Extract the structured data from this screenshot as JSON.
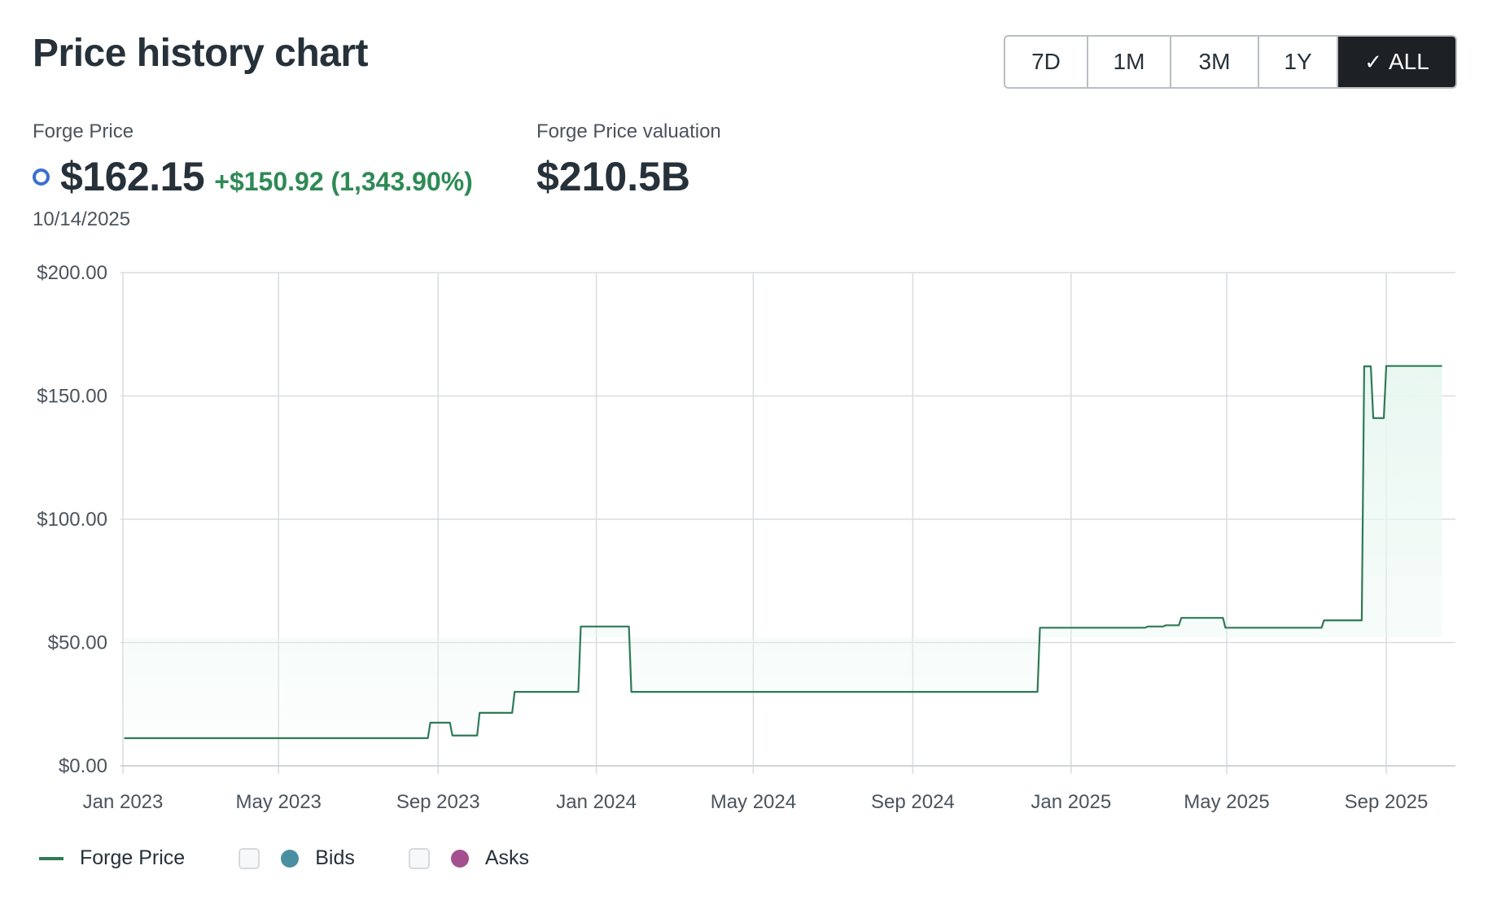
{
  "header": {
    "title": "Price history chart"
  },
  "ranges": [
    {
      "label": "7D",
      "active": false
    },
    {
      "label": "1M",
      "active": false
    },
    {
      "label": "3M",
      "active": false
    },
    {
      "label": "1Y",
      "active": false
    },
    {
      "label": "ALL",
      "active": true
    }
  ],
  "stats": {
    "price_label": "Forge Price",
    "price": "$162.15",
    "change": "+$150.92 (1,343.90%)",
    "date": "10/14/2025",
    "valuation_label": "Forge Price valuation",
    "valuation": "$210.5B"
  },
  "legend": {
    "forge": "Forge Price",
    "bids": "Bids",
    "asks": "Asks"
  },
  "colors": {
    "line": "#2f7a57",
    "fill": "#e9f7f1",
    "grid": "#d9dcdf",
    "bids": "#4a8fa0",
    "asks": "#a4508e",
    "active_button": "#1d2126",
    "change_positive": "#2e8a55"
  },
  "chart_data": {
    "type": "line",
    "title": "",
    "xlabel": "",
    "ylabel": "",
    "ylim": [
      0,
      200
    ],
    "xlim": [
      "2023-01-01",
      "2025-09-01"
    ],
    "y_ticks": [
      0,
      50,
      100,
      150,
      200
    ],
    "y_tick_labels": [
      "$0.00",
      "$50.00",
      "$100.00",
      "$150.00",
      "$200.00"
    ],
    "x_ticks": [
      "2023-01-01",
      "2023-05-01",
      "2023-09-01",
      "2024-01-01",
      "2024-05-01",
      "2024-09-01",
      "2025-01-01",
      "2025-05-01",
      "2025-09-01"
    ],
    "x_tick_labels": [
      "Jan 2023",
      "May 2023",
      "Sep 2023",
      "Jan 2024",
      "May 2024",
      "Sep 2024",
      "Jan 2025",
      "May 2025",
      "Sep 2025"
    ],
    "step": true,
    "grid": true,
    "legend_position": "bottom-left",
    "series": [
      {
        "name": "Forge Price",
        "points": [
          [
            "2023-01-02",
            11.23
          ],
          [
            "2023-08-26",
            17.5
          ],
          [
            "2023-09-12",
            12.3
          ],
          [
            "2023-10-03",
            21.5
          ],
          [
            "2023-10-30",
            30.0
          ],
          [
            "2023-12-20",
            56.5
          ],
          [
            "2024-01-28",
            30.0
          ],
          [
            "2024-12-08",
            56.0
          ],
          [
            "2025-03-01",
            56.5
          ],
          [
            "2025-03-15",
            57.0
          ],
          [
            "2025-03-27",
            60.0
          ],
          [
            "2025-04-30",
            56.0
          ],
          [
            "2025-07-15",
            59.0
          ],
          [
            "2025-08-15",
            162.0
          ],
          [
            "2025-08-22",
            141.0
          ],
          [
            "2025-09-01",
            162.15
          ],
          [
            "2025-10-14",
            162.15
          ]
        ]
      }
    ]
  }
}
